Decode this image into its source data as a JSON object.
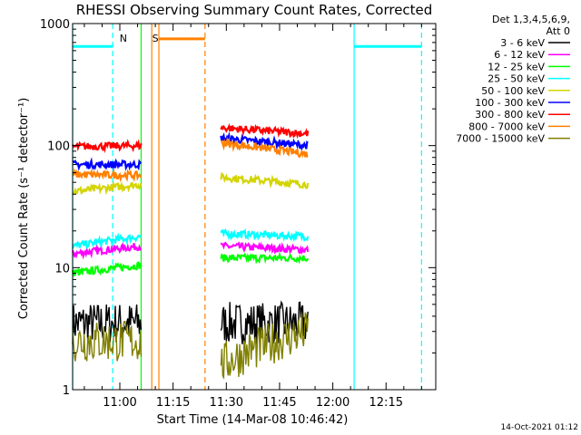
{
  "chart_data": {
    "type": "line",
    "title": "RHESSI Observing Summary Count Rates, Corrected",
    "xlabel": "Start Time (14-Mar-08 10:46:42)",
    "ylabel": "Corrected Count Rate (s⁻¹ detector⁻¹)",
    "y_scale": "log",
    "ylim": [
      1,
      1000
    ],
    "y_ticks": [
      1,
      10,
      100,
      1000
    ],
    "y_tick_labels": [
      "1",
      "10",
      "100",
      "1000"
    ],
    "x_range_minutes": [
      "10:46:42",
      "12:29:00"
    ],
    "x_ticks": [
      "11:00",
      "11:15",
      "11:30",
      "11:45",
      "12:00",
      "12:15"
    ],
    "legend_position": "right",
    "legend_header": [
      "Det 1,3,4,5,6,9,",
      "Att 0"
    ],
    "footer": "14-Oct-2021 01:12",
    "markers": [
      {
        "label": "N",
        "time": "11:01:00",
        "color": "#00ffff"
      },
      {
        "label": "S",
        "time": "11:10:00",
        "color": "#ff8000"
      }
    ],
    "segments": [
      {
        "start": "10:46:42",
        "end": "11:06:00"
      },
      {
        "start": "11:28:30",
        "end": "11:53:00"
      }
    ],
    "series": [
      {
        "name": "3 - 6 keV",
        "color": "#000000",
        "segments": [
          [
            3.5,
            3.5
          ],
          [
            3.5,
            3.5
          ]
        ]
      },
      {
        "name": "6 - 12 keV",
        "color": "#ff00ff",
        "segments": [
          [
            13,
            15
          ],
          [
            15,
            14
          ]
        ]
      },
      {
        "name": "12 - 25 keV",
        "color": "#00ff00",
        "segments": [
          [
            9,
            10.5
          ],
          [
            12,
            12
          ]
        ]
      },
      {
        "name": "25 - 50 keV",
        "color": "#00ffff",
        "segments": [
          [
            15,
            18
          ],
          [
            19,
            18
          ]
        ]
      },
      {
        "name": "50 - 100 keV",
        "color": "#d4d400",
        "segments": [
          [
            42,
            48
          ],
          [
            55,
            48
          ]
        ]
      },
      {
        "name": "100 - 300 keV",
        "color": "#0000ff",
        "segments": [
          [
            70,
            70
          ],
          [
            115,
            100
          ]
        ]
      },
      {
        "name": "300 - 800 keV",
        "color": "#ff0000",
        "segments": [
          [
            98,
            100
          ],
          [
            140,
            125
          ]
        ]
      },
      {
        "name": "800 - 7000 keV",
        "color": "#ff8000",
        "segments": [
          [
            58,
            57
          ],
          [
            105,
            85
          ]
        ]
      },
      {
        "name": "7000 - 15000 keV",
        "color": "#808000",
        "segments": [
          [
            2.5,
            2.5
          ],
          [
            1.6,
            3
          ]
        ]
      }
    ],
    "flags": [
      {
        "color": "#00ffff",
        "style": "solid",
        "start": "10:46:42",
        "end": "10:58:00",
        "value": 650
      },
      {
        "color": "#ff8000",
        "style": "solid",
        "start": "11:11:00",
        "end": "11:24:00",
        "value": 750
      },
      {
        "color": "#00ffff",
        "style": "solid",
        "start": "12:06:00",
        "end": "12:25:00",
        "value": 650
      }
    ],
    "vertical_lines": [
      {
        "time": "10:46:42",
        "color": "#00ffff",
        "style": "solid"
      },
      {
        "time": "10:58:00",
        "color": "#00ffff",
        "style": "dashed"
      },
      {
        "time": "11:06:00",
        "color": "#00ff00",
        "style": "solid"
      },
      {
        "time": "11:09:00",
        "color": "#ff8000",
        "style": "solid"
      },
      {
        "time": "11:11:00",
        "color": "#ff8000",
        "style": "solid"
      },
      {
        "time": "11:24:00",
        "color": "#ff8000",
        "style": "dashed"
      },
      {
        "time": "12:06:00",
        "color": "#00ffff",
        "style": "solid"
      },
      {
        "time": "12:25:00",
        "color": "#00ffff",
        "style": "dashed"
      }
    ]
  }
}
